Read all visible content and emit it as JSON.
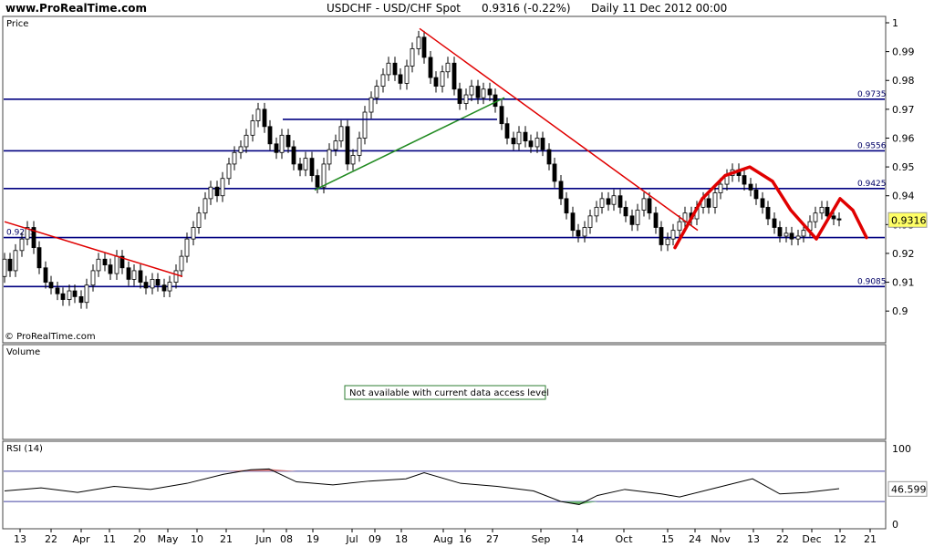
{
  "header": {
    "site": "www.ProRealTime.com",
    "symbol": "USDCHF - USD/CHF Spot",
    "last_change": "0.9316 (-0.22%)",
    "period_date": "Daily   11 Dec 2012 00:00"
  },
  "panels": {
    "price_label": "Price",
    "copyright": "© ProRealTime.com",
    "volume_label": "Volume",
    "volume_notice": "Not available with current data access level",
    "rsi_label": "RSI (14)"
  },
  "chart_data": [
    {
      "type": "candlestick",
      "panel": "price",
      "y_ticks": [
        "1",
        "0.99",
        "0.98",
        "0.97",
        "0.96",
        "0.95",
        "0.94",
        "0.93",
        "0.92",
        "0.91",
        "0.9"
      ],
      "ylim": [
        0.895,
        1.0
      ],
      "x_ticks": [
        "13",
        "22",
        "Apr",
        "11",
        "20",
        "May",
        "10",
        "21",
        "Jun",
        "08",
        "19",
        "Jul",
        "09",
        "18",
        "Aug",
        "16",
        "27",
        "Sep",
        "14",
        "Oct",
        "15",
        "24",
        "Nov",
        "13",
        "22",
        "Dec",
        "12",
        "21"
      ],
      "current_value": "0.9316",
      "horizontal_levels": [
        {
          "value": 0.9735,
          "label": "0.9735"
        },
        {
          "value": 0.9556,
          "label": "0.9556"
        },
        {
          "value": 0.9425,
          "label": "0.9425"
        },
        {
          "value": 0.9255,
          "label": "0.9255"
        },
        {
          "value": 0.9085,
          "label": "0.9085"
        }
      ],
      "series": [
        {
          "x": [
            0,
            6,
            12,
            19,
            25,
            32,
            38,
            45,
            51,
            58,
            64,
            71,
            77,
            84,
            90,
            97,
            103,
            110,
            116,
            123,
            129,
            136,
            142,
            149,
            155,
            162,
            168,
            175,
            181,
            188,
            194,
            200,
            207,
            213,
            220,
            226,
            233,
            239,
            246,
            252,
            259,
            265,
            272,
            278,
            285,
            291,
            298,
            304,
            311,
            317,
            324,
            330,
            337,
            343,
            350,
            356,
            363,
            369,
            376,
            382,
            389,
            395,
            402,
            408,
            415,
            421,
            428,
            434,
            441,
            447,
            454,
            460,
            467,
            473,
            480,
            486,
            493,
            499,
            506,
            512,
            519,
            525,
            532,
            538,
            545,
            551,
            558,
            564,
            571,
            577,
            584,
            590,
            597,
            603,
            610,
            616,
            623,
            629,
            636,
            642,
            649,
            655,
            662,
            668,
            675,
            681,
            688,
            694,
            701,
            707,
            714,
            720,
            727,
            733,
            740,
            746,
            753,
            759,
            766,
            772,
            779,
            785,
            792,
            798,
            805,
            811,
            818,
            824,
            831,
            837,
            844,
            850,
            857,
            863,
            870,
            876,
            883,
            889,
            896,
            902,
            909,
            915
          ],
          "open": [
            0.912,
            0.918,
            0.914,
            0.921,
            0.925,
            0.929,
            0.922,
            0.915,
            0.91,
            0.908,
            0.906,
            0.904,
            0.907,
            0.905,
            0.903,
            0.909,
            0.914,
            0.918,
            0.916,
            0.913,
            0.919,
            0.915,
            0.911,
            0.914,
            0.91,
            0.908,
            0.911,
            0.909,
            0.907,
            0.91,
            0.914,
            0.919,
            0.925,
            0.929,
            0.934,
            0.939,
            0.943,
            0.94,
            0.946,
            0.951,
            0.955,
            0.957,
            0.961,
            0.966,
            0.97,
            0.964,
            0.958,
            0.955,
            0.961,
            0.957,
            0.951,
            0.949,
            0.953,
            0.947,
            0.943,
            0.951,
            0.956,
            0.959,
            0.964,
            0.951,
            0.954,
            0.96,
            0.969,
            0.974,
            0.978,
            0.982,
            0.986,
            0.982,
            0.979,
            0.985,
            0.991,
            0.995,
            0.988,
            0.981,
            0.978,
            0.983,
            0.986,
            0.977,
            0.972,
            0.975,
            0.978,
            0.974,
            0.977,
            0.975,
            0.971,
            0.965,
            0.96,
            0.958,
            0.962,
            0.959,
            0.957,
            0.96,
            0.956,
            0.951,
            0.945,
            0.939,
            0.934,
            0.928,
            0.926,
            0.929,
            0.933,
            0.936,
            0.939,
            0.937,
            0.94,
            0.936,
            0.933,
            0.93,
            0.935,
            0.939,
            0.934,
            0.929,
            0.923,
            0.925,
            0.928,
            0.931,
            0.934,
            0.932,
            0.936,
            0.939,
            0.936,
            0.941,
            0.944,
            0.947,
            0.949,
            0.947,
            0.944,
            0.942,
            0.939,
            0.936,
            0.932,
            0.929,
            0.926,
            0.927,
            0.925,
            0.926,
            0.928,
            0.931,
            0.934,
            0.936,
            0.933,
            0.932
          ],
          "close": [
            0.918,
            0.914,
            0.921,
            0.925,
            0.929,
            0.922,
            0.915,
            0.91,
            0.908,
            0.906,
            0.904,
            0.907,
            0.905,
            0.903,
            0.909,
            0.914,
            0.918,
            0.916,
            0.913,
            0.919,
            0.915,
            0.911,
            0.914,
            0.91,
            0.908,
            0.911,
            0.909,
            0.907,
            0.91,
            0.914,
            0.919,
            0.925,
            0.929,
            0.934,
            0.939,
            0.943,
            0.94,
            0.946,
            0.951,
            0.955,
            0.957,
            0.961,
            0.966,
            0.97,
            0.964,
            0.958,
            0.955,
            0.961,
            0.957,
            0.951,
            0.949,
            0.953,
            0.947,
            0.943,
            0.951,
            0.956,
            0.959,
            0.964,
            0.951,
            0.954,
            0.96,
            0.969,
            0.974,
            0.978,
            0.982,
            0.986,
            0.982,
            0.979,
            0.985,
            0.991,
            0.995,
            0.988,
            0.981,
            0.978,
            0.983,
            0.986,
            0.977,
            0.972,
            0.975,
            0.978,
            0.974,
            0.977,
            0.975,
            0.971,
            0.965,
            0.96,
            0.958,
            0.962,
            0.959,
            0.957,
            0.96,
            0.956,
            0.951,
            0.945,
            0.939,
            0.934,
            0.928,
            0.926,
            0.929,
            0.933,
            0.936,
            0.939,
            0.937,
            0.94,
            0.936,
            0.933,
            0.93,
            0.935,
            0.939,
            0.934,
            0.929,
            0.923,
            0.925,
            0.928,
            0.931,
            0.934,
            0.932,
            0.936,
            0.939,
            0.936,
            0.941,
            0.944,
            0.947,
            0.949,
            0.947,
            0.944,
            0.942,
            0.939,
            0.936,
            0.932,
            0.929,
            0.926,
            0.927,
            0.925,
            0.926,
            0.928,
            0.931,
            0.934,
            0.936,
            0.933,
            0.932,
            0.9316
          ]
        }
      ],
      "trendlines": [
        {
          "color": "#e00000",
          "from": [
            0,
            0.931
          ],
          "to": [
            195,
            0.912
          ]
        },
        {
          "color": "#e00000",
          "from": [
            455,
            0.998
          ],
          "to": [
            760,
            0.928
          ]
        },
        {
          "color": "#228b22",
          "from": [
            340,
            0.942
          ],
          "to": [
            548,
            0.974
          ]
        },
        {
          "color": "#000080",
          "from": [
            305,
            0.9665
          ],
          "to": [
            540,
            0.9665
          ]
        }
      ],
      "pattern_curves": [
        {
          "color": "#e00000",
          "points": [
            [
              735,
              0.922
            ],
            [
              765,
              0.939
            ],
            [
              790,
              0.947
            ],
            [
              817,
              0.95
            ],
            [
              842,
              0.945
            ],
            [
              862,
              0.935
            ],
            [
              890,
              0.925
            ],
            [
              903,
              0.932
            ],
            [
              916,
              0.939
            ],
            [
              930,
              0.935
            ],
            [
              945,
              0.9255
            ]
          ]
        }
      ]
    },
    {
      "type": "line",
      "panel": "rsi",
      "name": "RSI (14)",
      "y_ticks": [
        "100",
        "0"
      ],
      "ylim": [
        0,
        100
      ],
      "levels": [
        70,
        30
      ],
      "current_value": "46.599",
      "x": [
        0,
        40,
        80,
        120,
        160,
        200,
        240,
        270,
        290,
        320,
        360,
        400,
        440,
        460,
        500,
        540,
        580,
        610,
        630,
        650,
        680,
        720,
        740,
        780,
        820,
        850,
        880,
        915
      ],
      "values": [
        44,
        48,
        42,
        50,
        46,
        54,
        66,
        72,
        73,
        56,
        52,
        57,
        60,
        68,
        54,
        50,
        44,
        30,
        26,
        38,
        46,
        40,
        36,
        48,
        60,
        40,
        42,
        47
      ]
    }
  ]
}
